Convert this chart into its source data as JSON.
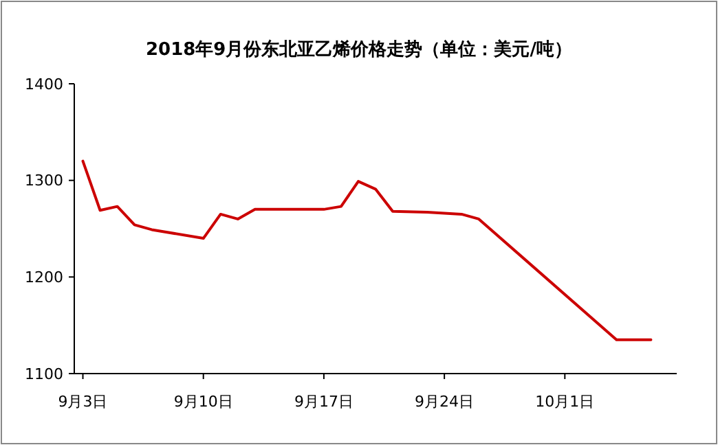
{
  "chart_data": {
    "type": "line",
    "title": "2018年9月份东北亚乙烯价格走势（单位：美元/吨）",
    "x": [
      "2018-09-03",
      "2018-09-04",
      "2018-09-05",
      "2018-09-06",
      "2018-09-07",
      "2018-09-10",
      "2018-09-11",
      "2018-09-12",
      "2018-09-13",
      "2018-09-17",
      "2018-09-18",
      "2018-09-19",
      "2018-09-20",
      "2018-09-21",
      "2018-09-23",
      "2018-09-25",
      "2018-09-26",
      "2018-10-04",
      "2018-10-06"
    ],
    "series": [
      {
        "color": "#cc0000",
        "values": [
          1320,
          1269,
          1273,
          1254,
          1249,
          1240,
          1265,
          1260,
          1270,
          1270,
          1273,
          1299,
          1291,
          1268,
          1267,
          1265,
          1260,
          1135,
          1135
        ]
      }
    ],
    "xlim": [
      "2018-09-02T12:00",
      "2018-10-07T12:00"
    ],
    "xticks": [
      {
        "value": "2018-09-03",
        "label": "9月3日"
      },
      {
        "value": "2018-09-10",
        "label": "9月10日"
      },
      {
        "value": "2018-09-17",
        "label": "9月17日"
      },
      {
        "value": "2018-09-24",
        "label": "9月24日"
      },
      {
        "value": "2018-10-01",
        "label": "10月1日"
      }
    ],
    "ylim": [
      1100,
      1400
    ],
    "yticks": [
      1100,
      1200,
      1300,
      1400
    ],
    "grid": false,
    "marker": "none",
    "line_style": "solid"
  }
}
